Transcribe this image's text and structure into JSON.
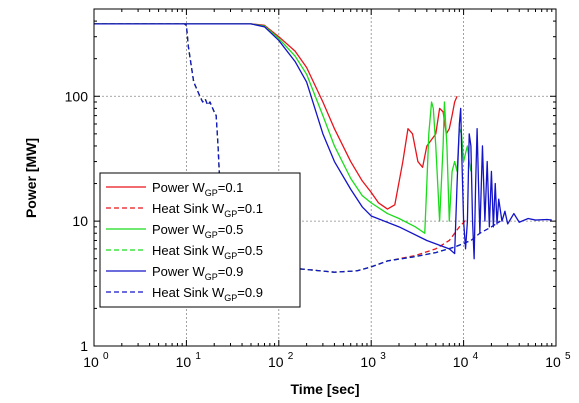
{
  "chart_data": {
    "type": "line",
    "title": "",
    "xlabel": "Time [sec]",
    "ylabel": "Power [MW]",
    "xscale": "log",
    "yscale": "log",
    "xlim": [
      1,
      100000
    ],
    "ylim": [
      1,
      500
    ],
    "grid": true,
    "legend_position": "lower-left",
    "x_ticks": [
      {
        "value": 1,
        "base": "10",
        "exp": "0"
      },
      {
        "value": 10,
        "base": "10",
        "exp": "1"
      },
      {
        "value": 100,
        "base": "10",
        "exp": "2"
      },
      {
        "value": 1000,
        "base": "10",
        "exp": "3"
      },
      {
        "value": 10000,
        "base": "10",
        "exp": "4"
      },
      {
        "value": 100000,
        "base": "10",
        "exp": "5"
      }
    ],
    "y_ticks": [
      {
        "value": 1,
        "label": "1"
      },
      {
        "value": 10,
        "label": "10"
      },
      {
        "value": 100,
        "label": "100"
      }
    ],
    "series": [
      {
        "name": "Power W_GP=0.1",
        "label_main": "Power W",
        "label_sub": "GP",
        "label_tail": "=0.1",
        "color": "#e8141b",
        "dash": "solid",
        "points": [
          [
            1,
            380
          ],
          [
            10,
            380
          ],
          [
            50,
            380
          ],
          [
            70,
            370
          ],
          [
            100,
            300
          ],
          [
            150,
            230
          ],
          [
            200,
            170
          ],
          [
            300,
            90
          ],
          [
            400,
            55
          ],
          [
            600,
            30
          ],
          [
            800,
            21
          ],
          [
            1000,
            17
          ],
          [
            1200,
            14
          ],
          [
            1500,
            12.5
          ],
          [
            1800,
            13.5
          ],
          [
            2200,
            30
          ],
          [
            2500,
            55
          ],
          [
            2800,
            50
          ],
          [
            3200,
            30
          ],
          [
            3600,
            27
          ],
          [
            4000,
            40
          ],
          [
            4500,
            45
          ],
          [
            5000,
            50
          ],
          [
            5500,
            80
          ],
          [
            6000,
            75
          ],
          [
            6500,
            50
          ],
          [
            7000,
            55
          ],
          [
            7500,
            70
          ],
          [
            8000,
            90
          ],
          [
            8500,
            100
          ]
        ]
      },
      {
        "name": "Heat Sink W_GP=0.1",
        "label_main": "Heat Sink W",
        "label_sub": "GP",
        "label_tail": "=0.1",
        "color": "#e8141b",
        "dash": "dashed",
        "points": [
          [
            1,
            380
          ],
          [
            9.5,
            380
          ],
          [
            10,
            370
          ],
          [
            10.5,
            250
          ],
          [
            12,
            130
          ],
          [
            14,
            100
          ],
          [
            15,
            90
          ],
          [
            16,
            95
          ],
          [
            17,
            85
          ],
          [
            18,
            90
          ],
          [
            20,
            75
          ],
          [
            21,
            70
          ],
          [
            22,
            40
          ],
          [
            23,
            20
          ],
          [
            25,
            10
          ],
          [
            30,
            5
          ],
          [
            40,
            4.5
          ],
          [
            100,
            4.3
          ],
          [
            200,
            4.1
          ],
          [
            400,
            3.9
          ],
          [
            700,
            4.0
          ],
          [
            1000,
            4.3
          ],
          [
            1500,
            4.8
          ],
          [
            3000,
            5.3
          ],
          [
            5000,
            6
          ],
          [
            7000,
            7
          ],
          [
            9000,
            9
          ],
          [
            11000,
            10.5
          ]
        ]
      },
      {
        "name": "Power W_GP=0.5",
        "label_main": "Power W",
        "label_sub": "GP",
        "label_tail": "=0.5",
        "color": "#1bdc1b",
        "dash": "solid",
        "points": [
          [
            1,
            380
          ],
          [
            10,
            380
          ],
          [
            50,
            380
          ],
          [
            70,
            365
          ],
          [
            100,
            290
          ],
          [
            150,
            210
          ],
          [
            200,
            150
          ],
          [
            300,
            70
          ],
          [
            400,
            40
          ],
          [
            600,
            22
          ],
          [
            800,
            16
          ],
          [
            1000,
            14
          ],
          [
            1500,
            11.5
          ],
          [
            2000,
            10.5
          ],
          [
            3000,
            9
          ],
          [
            3800,
            8
          ],
          [
            4000,
            20
          ],
          [
            4200,
            50
          ],
          [
            4500,
            90
          ],
          [
            4700,
            80
          ],
          [
            5000,
            40
          ],
          [
            5500,
            10
          ],
          [
            6000,
            40
          ],
          [
            6200,
            90
          ],
          [
            6600,
            40
          ],
          [
            7000,
            10
          ],
          [
            7500,
            25
          ],
          [
            8000,
            30
          ],
          [
            8500,
            25
          ],
          [
            9000,
            55
          ],
          [
            9500,
            50
          ],
          [
            10000,
            30
          ],
          [
            10500,
            35
          ],
          [
            11000,
            40
          ],
          [
            11500,
            30
          ],
          [
            12000,
            25
          ]
        ]
      },
      {
        "name": "Heat Sink W_GP=0.5",
        "label_main": "Heat Sink W",
        "label_sub": "GP",
        "label_tail": "=0.5",
        "color": "#1bdc1b",
        "dash": "dashed",
        "points": [
          [
            1,
            380
          ],
          [
            9.5,
            380
          ],
          [
            10,
            370
          ],
          [
            10.5,
            250
          ],
          [
            12,
            130
          ],
          [
            14,
            100
          ],
          [
            15,
            90
          ],
          [
            16,
            95
          ],
          [
            17,
            85
          ],
          [
            18,
            90
          ],
          [
            20,
            75
          ],
          [
            21,
            70
          ],
          [
            22,
            40
          ],
          [
            23,
            20
          ],
          [
            25,
            10
          ],
          [
            30,
            5
          ],
          [
            40,
            4.5
          ],
          [
            100,
            4.3
          ],
          [
            200,
            4.1
          ],
          [
            400,
            3.9
          ],
          [
            700,
            4.0
          ],
          [
            1000,
            4.3
          ],
          [
            1500,
            4.8
          ],
          [
            3000,
            5.2
          ],
          [
            5000,
            5.6
          ],
          [
            8000,
            6.2
          ],
          [
            12000,
            7
          ]
        ]
      },
      {
        "name": "Power W_GP=0.9",
        "label_main": "Power W",
        "label_sub": "GP",
        "label_tail": "=0.9",
        "color": "#1414c8",
        "dash": "solid",
        "points": [
          [
            1,
            380
          ],
          [
            10,
            380
          ],
          [
            50,
            380
          ],
          [
            70,
            360
          ],
          [
            100,
            280
          ],
          [
            150,
            190
          ],
          [
            200,
            130
          ],
          [
            300,
            50
          ],
          [
            400,
            30
          ],
          [
            600,
            18
          ],
          [
            800,
            13
          ],
          [
            1000,
            11
          ],
          [
            2000,
            9
          ],
          [
            4000,
            7
          ],
          [
            7000,
            6
          ],
          [
            8000,
            5.5
          ],
          [
            8500,
            20
          ],
          [
            9000,
            60
          ],
          [
            9300,
            80
          ],
          [
            9600,
            30
          ],
          [
            10000,
            10
          ],
          [
            10500,
            6
          ],
          [
            11000,
            10
          ],
          [
            11500,
            50
          ],
          [
            12000,
            40
          ],
          [
            12500,
            10
          ],
          [
            13000,
            5
          ],
          [
            13500,
            20
          ],
          [
            14000,
            55
          ],
          [
            14500,
            20
          ],
          [
            15000,
            8
          ],
          [
            16000,
            40
          ],
          [
            17000,
            10
          ],
          [
            18000,
            30
          ],
          [
            19000,
            9
          ],
          [
            20000,
            25
          ],
          [
            21000,
            9
          ],
          [
            22000,
            20
          ],
          [
            23000,
            9.5
          ],
          [
            24000,
            15
          ],
          [
            26000,
            10
          ],
          [
            28000,
            12
          ],
          [
            30000,
            9.5
          ],
          [
            35000,
            11.5
          ],
          [
            40000,
            9.8
          ],
          [
            50000,
            10.5
          ],
          [
            60000,
            10.2
          ],
          [
            80000,
            10.3
          ],
          [
            90000,
            10.2
          ]
        ]
      },
      {
        "name": "Heat Sink W_GP=0.9",
        "label_main": "Heat Sink W",
        "label_sub": "GP",
        "label_tail": "=0.9",
        "color": "#1414c8",
        "dash": "dashed",
        "points": [
          [
            1,
            380
          ],
          [
            9.5,
            380
          ],
          [
            10,
            370
          ],
          [
            10.5,
            250
          ],
          [
            12,
            130
          ],
          [
            14,
            100
          ],
          [
            15,
            90
          ],
          [
            16,
            95
          ],
          [
            17,
            85
          ],
          [
            18,
            90
          ],
          [
            20,
            75
          ],
          [
            21,
            70
          ],
          [
            22,
            40
          ],
          [
            23,
            20
          ],
          [
            25,
            10
          ],
          [
            30,
            5
          ],
          [
            40,
            4.5
          ],
          [
            100,
            4.3
          ],
          [
            200,
            4.1
          ],
          [
            400,
            3.9
          ],
          [
            700,
            4.0
          ],
          [
            1000,
            4.3
          ],
          [
            1500,
            4.8
          ],
          [
            3000,
            5.2
          ],
          [
            5000,
            5.6
          ],
          [
            8000,
            6.2
          ],
          [
            12000,
            7
          ],
          [
            15000,
            8
          ],
          [
            20000,
            9
          ],
          [
            25000,
            10
          ]
        ]
      }
    ]
  }
}
